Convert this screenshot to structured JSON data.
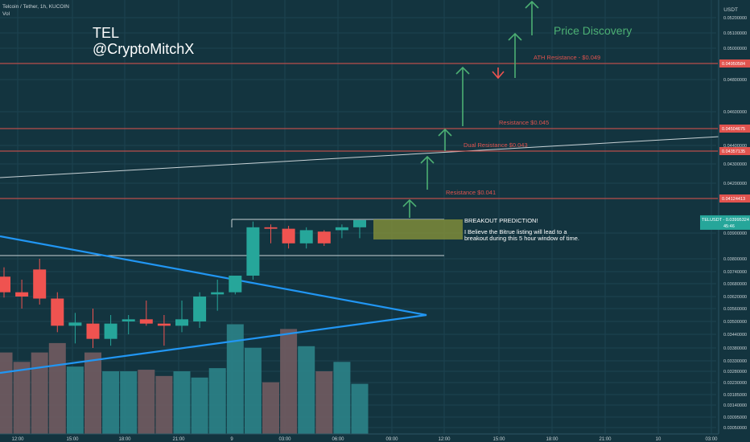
{
  "header": {
    "symbol_line": "Telcoin / Tether, 1h, KUCOIN",
    "vol_label": "Vol",
    "currency": "USDT"
  },
  "watermark": {
    "line1": "TEL",
    "line2": "@CryptoMitchX"
  },
  "annotations": {
    "price_discovery": "Price Discovery",
    "breakout_title": "BREAKOUT PREDICTION!",
    "breakout_line1": "I Believe the Bitrue listing will lead to a",
    "breakout_line2": "breakout during this 5 hour window of time."
  },
  "colors": {
    "background": "#13343f",
    "up": "#26a69a",
    "down": "#ef5350",
    "resistance": "#e0534e",
    "arrow": "#4caf73",
    "triangle": "#2196f3",
    "box": "#7f8c3a"
  },
  "chart_data": {
    "type": "candlestick",
    "price_tick_labels": [
      "0.05200000",
      "0.05100000",
      "0.05000000",
      "0.04800000",
      "0.04600000",
      "0.04400000",
      "0.04300000",
      "0.04200000",
      "0.03900000",
      "0.03800000",
      "0.03740000",
      "0.03680000",
      "0.03620000",
      "0.03560000",
      "0.03500000",
      "0.03440000",
      "0.03380000",
      "0.03330000",
      "0.03280000",
      "0.03230000",
      "0.03185000",
      "0.03140000",
      "0.03095000",
      "0.03050000"
    ],
    "time_tick_labels": [
      "12:00",
      "15:00",
      "18:00",
      "21:00",
      "9",
      "03:00",
      "06:00",
      "09:00",
      "12:00",
      "15:00",
      "18:00",
      "21:00",
      "10",
      "03:00"
    ],
    "candles": [
      {
        "o": 0.03715,
        "h": 0.0376,
        "l": 0.03615,
        "c": 0.0364
      },
      {
        "o": 0.0364,
        "h": 0.037,
        "l": 0.0356,
        "c": 0.0362
      },
      {
        "o": 0.0375,
        "h": 0.038,
        "l": 0.0358,
        "c": 0.0361
      },
      {
        "o": 0.0361,
        "h": 0.0364,
        "l": 0.0345,
        "c": 0.0348
      },
      {
        "o": 0.0348,
        "h": 0.0354,
        "l": 0.034,
        "c": 0.03495
      },
      {
        "o": 0.0349,
        "h": 0.0356,
        "l": 0.0338,
        "c": 0.0342
      },
      {
        "o": 0.0342,
        "h": 0.0353,
        "l": 0.0339,
        "c": 0.0349
      },
      {
        "o": 0.035,
        "h": 0.0353,
        "l": 0.0344,
        "c": 0.0351
      },
      {
        "o": 0.0351,
        "h": 0.036,
        "l": 0.0348,
        "c": 0.0349
      },
      {
        "o": 0.0349,
        "h": 0.0353,
        "l": 0.0339,
        "c": 0.0348
      },
      {
        "o": 0.0348,
        "h": 0.036,
        "l": 0.0345,
        "c": 0.0351
      },
      {
        "o": 0.035,
        "h": 0.0364,
        "l": 0.0347,
        "c": 0.0362
      },
      {
        "o": 0.0363,
        "h": 0.037,
        "l": 0.0355,
        "c": 0.0364
      },
      {
        "o": 0.0364,
        "h": 0.0372,
        "l": 0.0363,
        "c": 0.0372
      },
      {
        "o": 0.0372,
        "h": 0.0398,
        "l": 0.037,
        "c": 0.0394
      },
      {
        "o": 0.0394,
        "h": 0.0396,
        "l": 0.0386,
        "c": 0.0393
      },
      {
        "o": 0.0393,
        "h": 0.0395,
        "l": 0.0384,
        "c": 0.0386
      },
      {
        "o": 0.0386,
        "h": 0.0394,
        "l": 0.0384,
        "c": 0.0392
      },
      {
        "o": 0.0391,
        "h": 0.0392,
        "l": 0.0385,
        "c": 0.0386
      },
      {
        "o": 0.0392,
        "h": 0.0396,
        "l": 0.0388,
        "c": 0.0394
      },
      {
        "o": 0.0394,
        "h": 0.0399,
        "l": 0.0388,
        "c": 0.0399
      }
    ],
    "volume": [
      52,
      46,
      52,
      58,
      43,
      52,
      40,
      40,
      41,
      37,
      40,
      36,
      42,
      70,
      55,
      33,
      67,
      56,
      40,
      46,
      32
    ],
    "levels": [
      {
        "price": 0.0495,
        "label": "ATH Resistance - $0.049",
        "tag": "0.04950584"
      },
      {
        "price": 0.045,
        "label": "Resistance $0.045",
        "tag": "0.04504675"
      },
      {
        "price": 0.0433,
        "label": "Dual Resistance $0.043",
        "tag": "0.04357135"
      },
      {
        "price": 0.041,
        "label": "Resistance $0.041",
        "tag": "0.04124413"
      }
    ],
    "current_price": {
      "symbol": "TELUSDT",
      "value": "0.03995324",
      "countdown": "45:46"
    }
  }
}
